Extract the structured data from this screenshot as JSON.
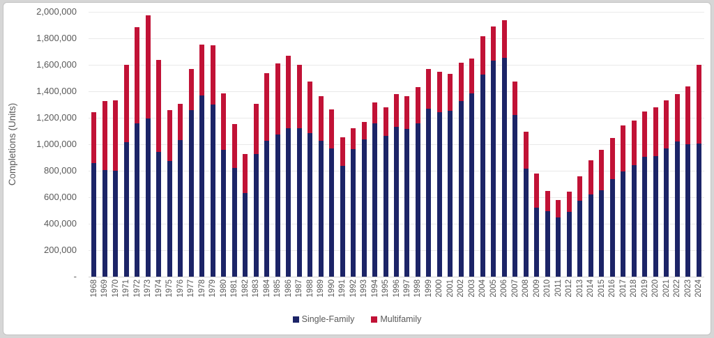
{
  "colors": {
    "outer_background": "#d6d6d6",
    "panel_background": "#ffffff",
    "panel_border": "#c3c3c3",
    "gridline": "#e9e9e9",
    "axis_line": "#cfcfcf",
    "axis_text": "#595959",
    "single_family": "#1C2467",
    "multifamily": "#C11236"
  },
  "chart_data": {
    "type": "bar",
    "stacked": true,
    "title": "",
    "xlabel": "",
    "ylabel": "Completions (Units)",
    "ylim": [
      0,
      2000000
    ],
    "y_tick_step": 200000,
    "y_tick_labels_top_down": [
      "2,000,000",
      "1,800,000",
      "1,600,000",
      "1,400,000",
      "1,200,000",
      "1,000,000",
      "800,000",
      "600,000",
      "400,000",
      "200,000",
      "-"
    ],
    "grid": "horizontal",
    "legend_position": "bottom",
    "categories": [
      "1968",
      "1969",
      "1970",
      "1971",
      "1972",
      "1973",
      "1974",
      "1975",
      "1976",
      "1977",
      "1978",
      "1979",
      "1980",
      "1981",
      "1982",
      "1983",
      "1984",
      "1985",
      "1986",
      "1987",
      "1988",
      "1989",
      "1990",
      "1991",
      "1992",
      "1993",
      "1994",
      "1995",
      "1996",
      "1997",
      "1998",
      "1999",
      "2000",
      "2001",
      "2002",
      "2003",
      "2004",
      "2005",
      "2006",
      "2007",
      "2008",
      "2009",
      "2010",
      "2011",
      "2012",
      "2013",
      "2014",
      "2015",
      "2016",
      "2017",
      "2018",
      "2019",
      "2020",
      "2021",
      "2022",
      "2023",
      "2024"
    ],
    "series": [
      {
        "name": "Single-Family",
        "color": "#1C2467",
        "values": [
          858000,
          807000,
          802000,
          1014000,
          1160000,
          1197000,
          940000,
          875000,
          1032000,
          1258000,
          1369000,
          1301000,
          957000,
          819000,
          632000,
          924000,
          1025000,
          1072000,
          1120000,
          1123000,
          1085000,
          1026000,
          966000,
          838000,
          964000,
          1039000,
          1160000,
          1065000,
          1129000,
          1116000,
          1156000,
          1270000,
          1242000,
          1253000,
          1325000,
          1386000,
          1528000,
          1633000,
          1650000,
          1220000,
          815000,
          522000,
          496000,
          445000,
          488000,
          572000,
          623000,
          650000,
          737000,
          795000,
          840000,
          903000,
          912000,
          970000,
          1020000,
          998000,
          1005000
        ]
      },
      {
        "name": "Multifamily",
        "color": "#C11236",
        "values": [
          382000,
          518000,
          530000,
          586000,
          723000,
          778000,
          697000,
          381000,
          271000,
          308000,
          384000,
          446000,
          425000,
          336000,
          294000,
          380000,
          512000,
          538000,
          550000,
          477000,
          390000,
          339000,
          298000,
          217000,
          156000,
          131000,
          157000,
          215000,
          251000,
          245000,
          274000,
          299000,
          305000,
          280000,
          291000,
          260000,
          290000,
          258000,
          285000,
          252000,
          280000,
          256000,
          150000,
          136000,
          154000,
          184000,
          256000,
          308000,
          312000,
          347000,
          337000,
          344000,
          365000,
          362000,
          359000,
          437000,
          595000
        ]
      }
    ]
  },
  "legend": {
    "single_family_label": "Single-Family",
    "multifamily_label": "Multifamily"
  }
}
